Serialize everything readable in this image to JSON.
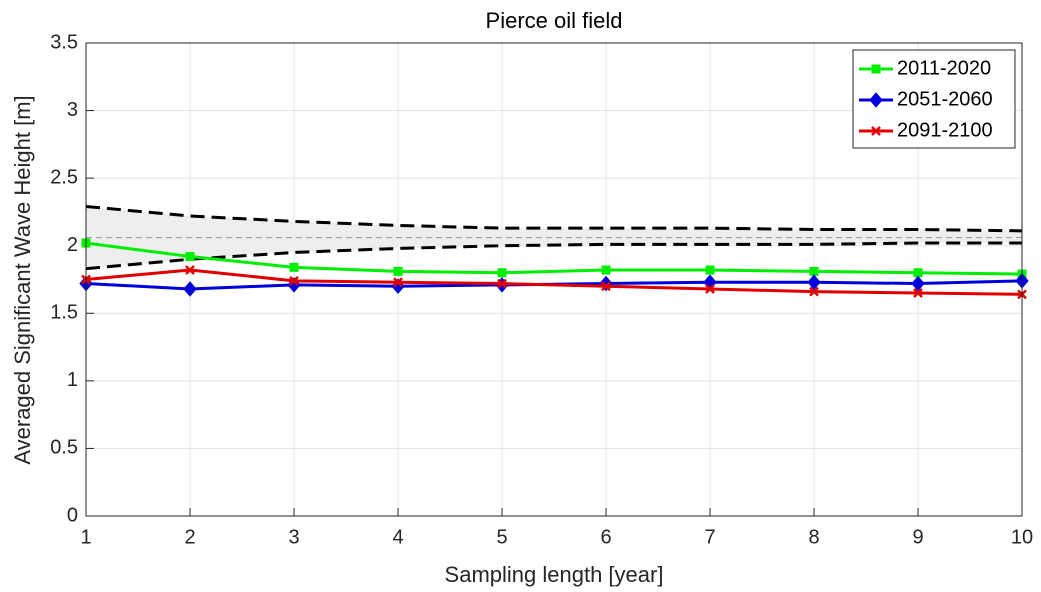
{
  "chart_data": {
    "type": "line",
    "title": "Pierce oil field",
    "xlabel": "Sampling length [year]",
    "ylabel": "Averaged Significant Wave Height [m]",
    "x": [
      1,
      2,
      3,
      4,
      5,
      6,
      7,
      8,
      9,
      10
    ],
    "xlim": [
      1,
      10
    ],
    "xticks": [
      1,
      2,
      3,
      4,
      5,
      6,
      7,
      8,
      9,
      10
    ],
    "ylim": [
      0,
      3.5
    ],
    "yticks": [
      0,
      0.5,
      1,
      1.5,
      2,
      2.5,
      3,
      3.5
    ],
    "grid": true,
    "legend": "upper right",
    "series": [
      {
        "name": "2011-2020",
        "color": "#00ee00",
        "marker": "square",
        "values": [
          2.02,
          1.92,
          1.84,
          1.81,
          1.8,
          1.82,
          1.82,
          1.81,
          1.8,
          1.79
        ]
      },
      {
        "name": "2051-2060",
        "color": "#0000dd",
        "marker": "diamond",
        "values": [
          1.72,
          1.68,
          1.71,
          1.7,
          1.71,
          1.72,
          1.73,
          1.73,
          1.72,
          1.74
        ]
      },
      {
        "name": "2091-2100",
        "color": "#e00000",
        "marker": "x",
        "values": [
          1.75,
          1.82,
          1.74,
          1.73,
          1.72,
          1.7,
          1.68,
          1.66,
          1.65,
          1.64
        ]
      }
    ],
    "envelope": {
      "color": "#000000",
      "fill": "#eeeeee",
      "upper": [
        2.29,
        2.22,
        2.18,
        2.15,
        2.13,
        2.13,
        2.13,
        2.12,
        2.12,
        2.11
      ],
      "lower": [
        1.83,
        1.9,
        1.95,
        1.98,
        2.0,
        2.01,
        2.01,
        2.01,
        2.02,
        2.02
      ],
      "center": 2.06
    }
  }
}
